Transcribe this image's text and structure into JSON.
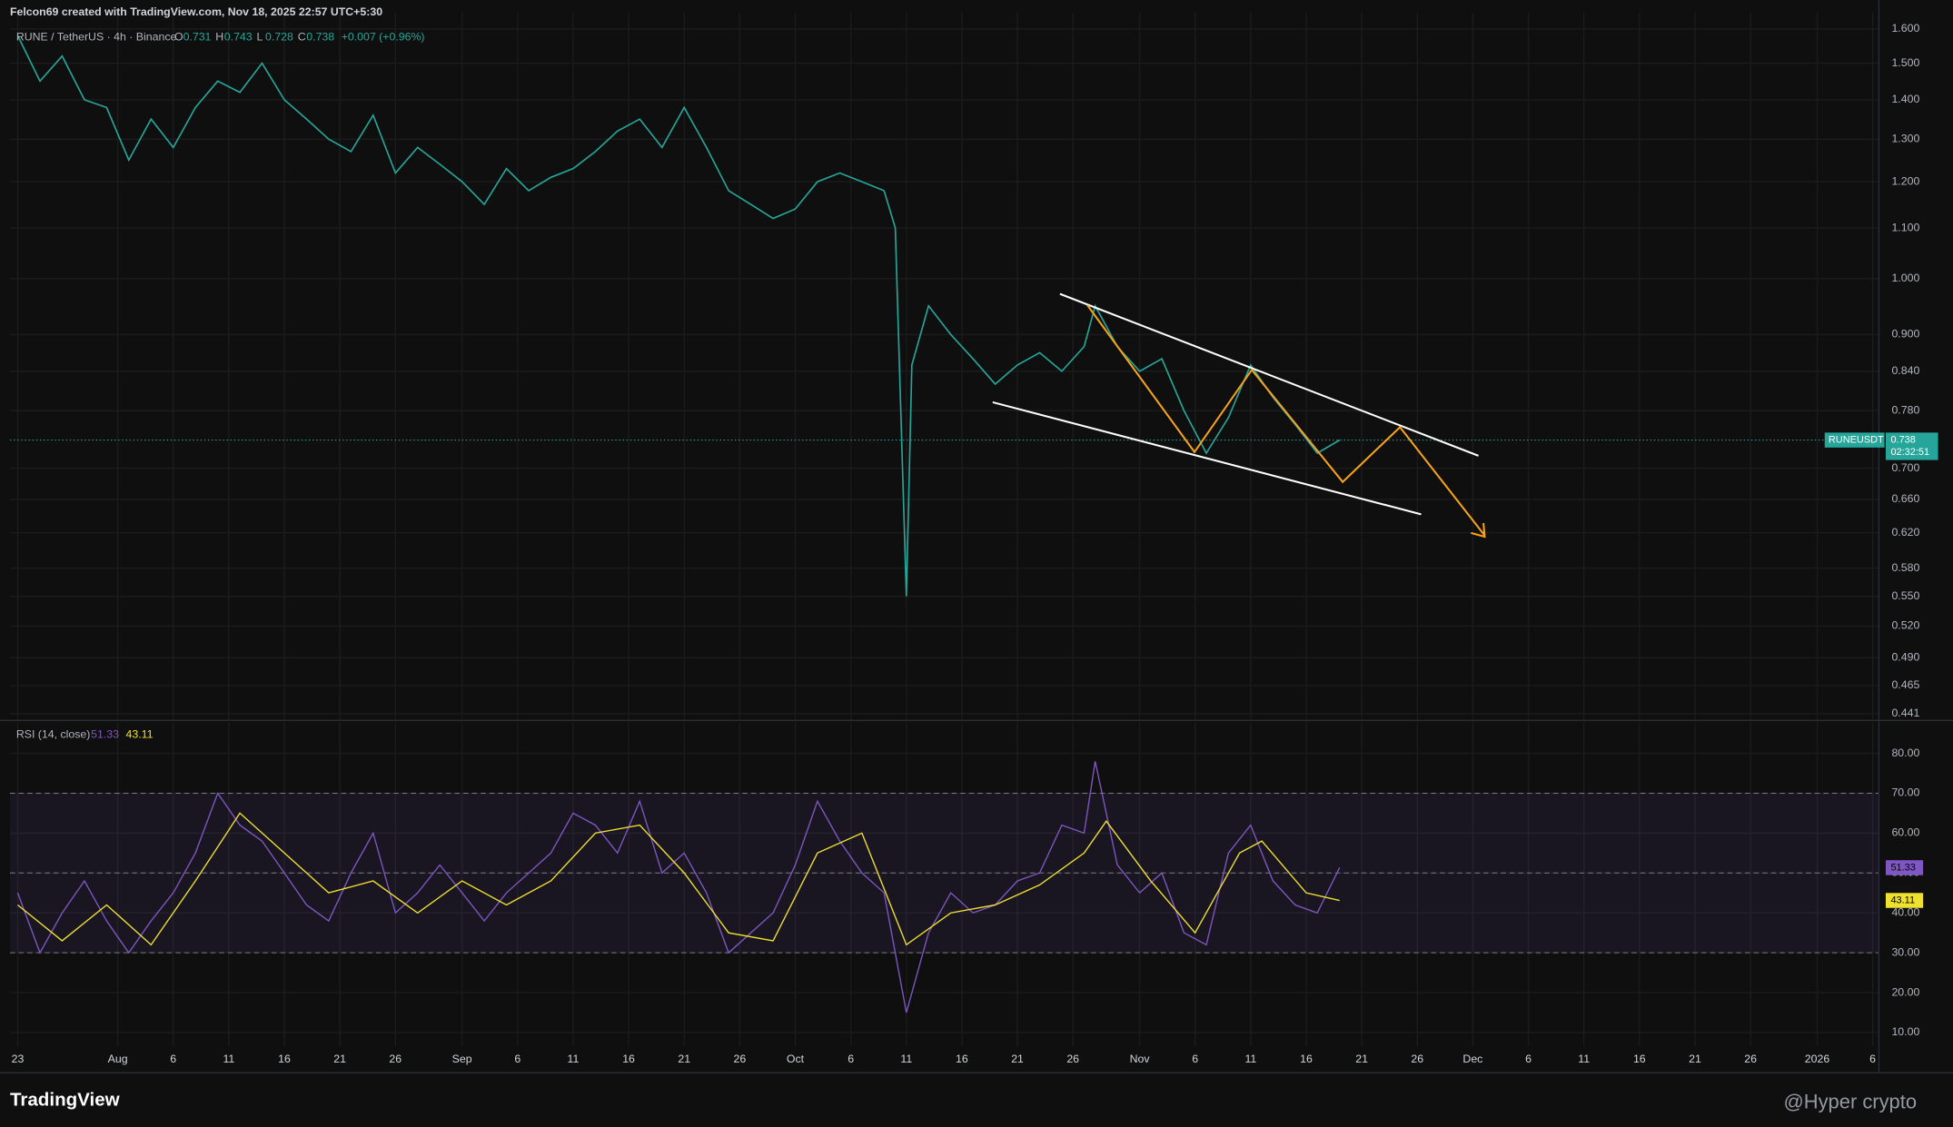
{
  "header": {
    "credit": "Felcon69 created with TradingView.com, Nov 18, 2025 22:57 UTC+5:30",
    "symbol": "RUNE / TetherUS · 4h · Binance",
    "ohlc": [
      {
        "label": "O",
        "value": "0.731"
      },
      {
        "label": "H",
        "value": "0.743"
      },
      {
        "label": "L",
        "value": "0.728"
      },
      {
        "label": "C",
        "value": "0.738"
      }
    ],
    "change": "+0.007 (+0.96%)"
  },
  "footer": {
    "brand": "TradingView",
    "watermark": "@Hyper crypto"
  },
  "chart_data": [
    {
      "type": "line",
      "log_scale": true,
      "color": "#26a69a",
      "grid": true,
      "x": [
        0,
        2,
        4,
        6,
        8,
        10,
        12,
        14,
        16,
        18,
        20,
        22,
        24,
        26,
        28,
        30,
        32,
        34,
        36,
        38,
        40,
        42,
        44,
        46,
        48,
        50,
        52,
        54,
        56,
        58,
        60,
        62,
        64,
        66,
        68,
        70,
        72,
        74,
        76,
        78,
        79,
        80,
        80.5,
        82,
        84,
        86,
        88,
        90,
        92,
        94,
        96,
        97,
        99,
        101,
        103,
        105,
        107,
        109,
        111,
        113,
        115,
        117,
        119
      ],
      "values": [
        1.58,
        1.45,
        1.52,
        1.4,
        1.38,
        1.25,
        1.35,
        1.28,
        1.38,
        1.45,
        1.42,
        1.5,
        1.4,
        1.35,
        1.3,
        1.27,
        1.36,
        1.22,
        1.28,
        1.24,
        1.2,
        1.15,
        1.23,
        1.18,
        1.21,
        1.23,
        1.27,
        1.32,
        1.35,
        1.28,
        1.38,
        1.28,
        1.18,
        1.15,
        1.12,
        1.14,
        1.2,
        1.22,
        1.2,
        1.18,
        1.1,
        0.55,
        0.85,
        0.95,
        0.9,
        0.86,
        0.82,
        0.85,
        0.87,
        0.84,
        0.88,
        0.95,
        0.88,
        0.84,
        0.86,
        0.78,
        0.72,
        0.77,
        0.85,
        0.8,
        0.76,
        0.72,
        0.738
      ],
      "xlim": [
        -0.7,
        167.5
      ],
      "ylim": [
        0.436,
        1.65
      ],
      "yticks": [
        {
          "value": 1.6,
          "label": "1.600"
        },
        {
          "value": 1.5,
          "label": "1.500"
        },
        {
          "value": 1.4,
          "label": "1.400"
        },
        {
          "value": 1.3,
          "label": "1.300"
        },
        {
          "value": 1.2,
          "label": "1.200"
        },
        {
          "value": 1.1,
          "label": "1.100"
        },
        {
          "value": 1.0,
          "label": "1.000"
        },
        {
          "value": 0.9,
          "label": "0.900"
        },
        {
          "value": 0.84,
          "label": "0.840"
        },
        {
          "value": 0.78,
          "label": "0.780"
        },
        {
          "value": 0.7,
          "label": "0.700"
        },
        {
          "value": 0.66,
          "label": "0.660"
        },
        {
          "value": 0.62,
          "label": "0.620"
        },
        {
          "value": 0.58,
          "label": "0.580"
        },
        {
          "value": 0.55,
          "label": "0.550"
        },
        {
          "value": 0.52,
          "label": "0.520"
        },
        {
          "value": 0.49,
          "label": "0.490"
        },
        {
          "value": 0.465,
          "label": "0.465"
        },
        {
          "value": 0.441,
          "label": "0.441"
        }
      ],
      "last_price": {
        "symbol": "RUNEUSDT",
        "countdown": "02:32:51"
      }
    },
    {
      "type": "line",
      "title": "RSI (14, close)",
      "grid": true,
      "band": [
        30,
        70
      ],
      "band_lines": [
        70,
        50,
        30
      ],
      "series": [
        {
          "color": "#7e57c2",
          "x": [
            0,
            2,
            4,
            6,
            8,
            10,
            12,
            14,
            16,
            18,
            20,
            22,
            24,
            26,
            28,
            30,
            32,
            34,
            36,
            38,
            40,
            42,
            44,
            46,
            48,
            50,
            52,
            54,
            56,
            58,
            60,
            62,
            64,
            66,
            68,
            70,
            72,
            74,
            76,
            78,
            80,
            82,
            84,
            86,
            88,
            90,
            92,
            94,
            96,
            97,
            99,
            101,
            103,
            105,
            107,
            109,
            111,
            113,
            115,
            117,
            119
          ],
          "values": [
            45,
            30,
            40,
            48,
            38,
            30,
            38,
            45,
            55,
            70,
            62,
            58,
            50,
            42,
            38,
            50,
            60,
            40,
            45,
            52,
            45,
            38,
            45,
            50,
            55,
            65,
            62,
            55,
            68,
            50,
            55,
            45,
            30,
            35,
            40,
            52,
            68,
            58,
            50,
            45,
            15,
            35,
            45,
            40,
            42,
            48,
            50,
            62,
            60,
            78,
            52,
            45,
            50,
            35,
            32,
            55,
            62,
            48,
            42,
            40,
            51.33
          ]
        },
        {
          "color": "#f0e130",
          "x": [
            0,
            4,
            8,
            12,
            16,
            20,
            24,
            28,
            32,
            36,
            40,
            44,
            48,
            52,
            56,
            60,
            64,
            68,
            72,
            76,
            80,
            84,
            88,
            92,
            96,
            98,
            102,
            106,
            110,
            112,
            116,
            119
          ],
          "values": [
            42,
            33,
            42,
            32,
            48,
            65,
            55,
            45,
            48,
            40,
            48,
            42,
            48,
            60,
            62,
            50,
            35,
            33,
            55,
            60,
            32,
            40,
            42,
            47,
            55,
            63,
            48,
            35,
            55,
            58,
            45,
            43.11
          ]
        }
      ],
      "xlim": [
        -0.7,
        167.5
      ],
      "ylim": [
        6.6,
        87.8
      ],
      "yticks": [
        {
          "value": 80,
          "label": "80.00"
        },
        {
          "value": 70,
          "label": "70.00"
        },
        {
          "value": 60,
          "label": "60.00"
        },
        {
          "value": 50,
          "label": "50.00"
        },
        {
          "value": 40,
          "label": "40.00"
        },
        {
          "value": 30,
          "label": "30.00"
        },
        {
          "value": 20,
          "label": "20.00"
        },
        {
          "value": 10,
          "label": "10.00"
        }
      ],
      "xticks": [
        {
          "value": 0,
          "label": "23"
        },
        {
          "value": 9,
          "label": "Aug"
        },
        {
          "value": 14,
          "label": "6"
        },
        {
          "value": 19,
          "label": "11"
        },
        {
          "value": 24,
          "label": "16"
        },
        {
          "value": 29,
          "label": "21"
        },
        {
          "value": 34,
          "label": "26"
        },
        {
          "value": 40,
          "label": "Sep"
        },
        {
          "value": 45,
          "label": "6"
        },
        {
          "value": 50,
          "label": "11"
        },
        {
          "value": 55,
          "label": "16"
        },
        {
          "value": 60,
          "label": "21"
        },
        {
          "value": 65,
          "label": "26"
        },
        {
          "value": 70,
          "label": "Oct"
        },
        {
          "value": 75,
          "label": "6"
        },
        {
          "value": 80,
          "label": "11"
        },
        {
          "value": 85,
          "label": "16"
        },
        {
          "value": 90,
          "label": "21"
        },
        {
          "value": 95,
          "label": "26"
        },
        {
          "value": 101,
          "label": "Nov"
        },
        {
          "value": 106,
          "label": "6"
        },
        {
          "value": 111,
          "label": "11"
        },
        {
          "value": 116,
          "label": "16"
        },
        {
          "value": 121,
          "label": "21"
        },
        {
          "value": 126,
          "label": "26"
        },
        {
          "value": 131,
          "label": "Dec"
        },
        {
          "value": 136,
          "label": "6"
        },
        {
          "value": 141,
          "label": "11"
        },
        {
          "value": 146,
          "label": "16"
        },
        {
          "value": 151,
          "label": "21"
        },
        {
          "value": 156,
          "label": "26"
        },
        {
          "value": 162,
          "label": "2026"
        },
        {
          "value": 167,
          "label": "6"
        }
      ]
    }
  ]
}
